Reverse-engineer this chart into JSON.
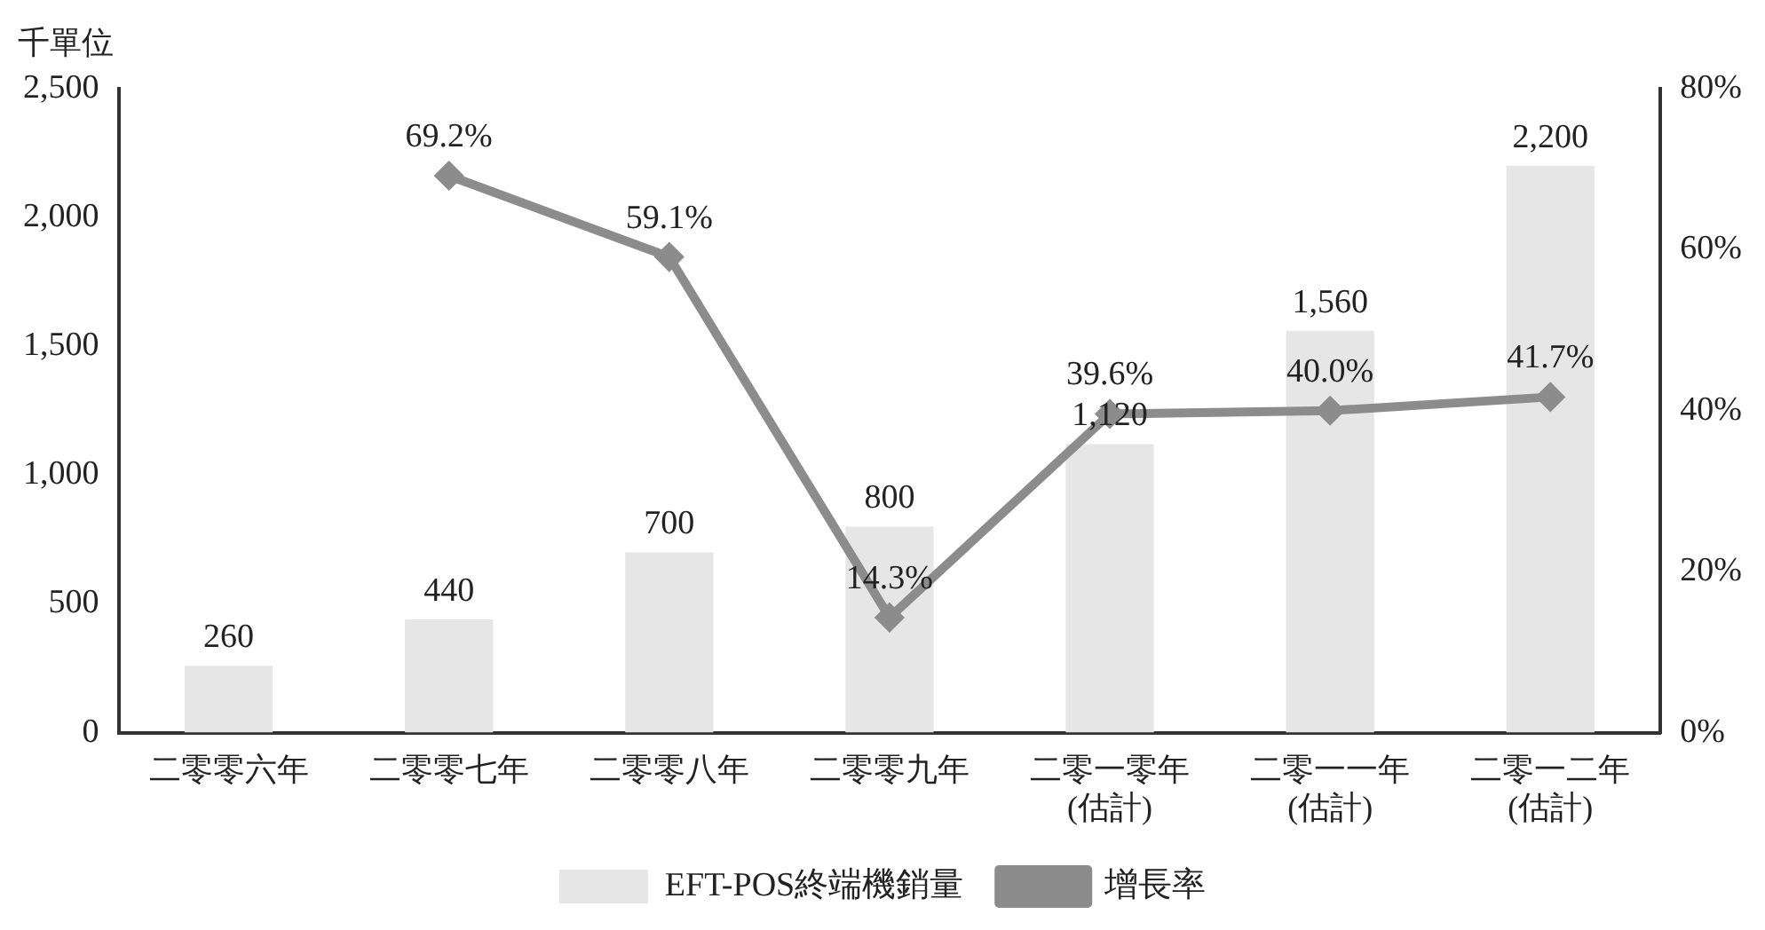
{
  "chart_data": {
    "type": "bar",
    "ylabel": "千單位",
    "categories": [
      "二零零六年",
      "二零零七年",
      "二零零八年",
      "二零零九年",
      "二零一零年\n(估計)",
      "二零一一年\n(估計)",
      "二零一二年\n(估計)"
    ],
    "series": [
      {
        "name": "EFT-POS終端機銷量",
        "color": "#e6e6e6",
        "values": [
          260,
          440,
          700,
          800,
          1120,
          1560,
          2200
        ],
        "value_labels": [
          "260",
          "440",
          "700",
          "800",
          "1,120",
          "1,560",
          "2,200"
        ]
      },
      {
        "name": "增長率",
        "type": "line",
        "axis": "y2",
        "color": "#8c8c8c",
        "marker": "diamond",
        "values": [
          null,
          69.2,
          59.1,
          14.3,
          39.6,
          40.0,
          41.7
        ],
        "value_labels": [
          null,
          "69.2%",
          "59.1%",
          "14.3%",
          "39.6%",
          "40.0%",
          "41.7%"
        ]
      }
    ],
    "ylim": [
      0,
      2500
    ],
    "yticks": [
      {
        "value": 0,
        "label": "0"
      },
      {
        "value": 500,
        "label": "500"
      },
      {
        "value": 1000,
        "label": "1,000"
      },
      {
        "value": 1500,
        "label": "1,500"
      },
      {
        "value": 2000,
        "label": "2,000"
      },
      {
        "value": 2500,
        "label": "2,500"
      }
    ],
    "y2lim": [
      0,
      80
    ],
    "y2ticks": [
      {
        "value": 0,
        "label": "0%"
      },
      {
        "value": 20,
        "label": "20%"
      },
      {
        "value": 40,
        "label": "40%"
      },
      {
        "value": 60,
        "label": "60%"
      },
      {
        "value": 80,
        "label": "80%"
      }
    ],
    "grid": false,
    "legend": "bottom"
  }
}
